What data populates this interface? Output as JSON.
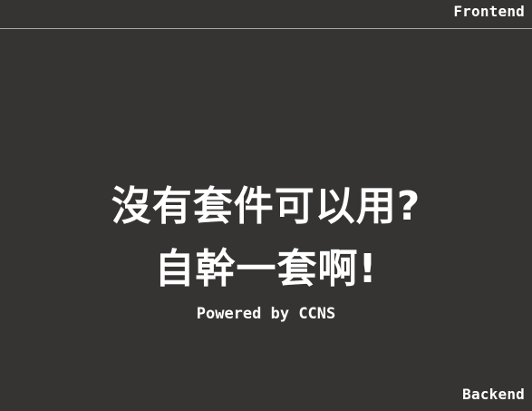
{
  "slide": {
    "top_label": "Frontend",
    "bottom_label": "Backend",
    "headline_line1": "沒有套件可以用?",
    "headline_line2": "自幹一套啊!",
    "subtitle": "Powered by CCNS",
    "colors": {
      "background": "#363433",
      "text": "#ffffff",
      "divider": "#a8a7a6"
    }
  }
}
